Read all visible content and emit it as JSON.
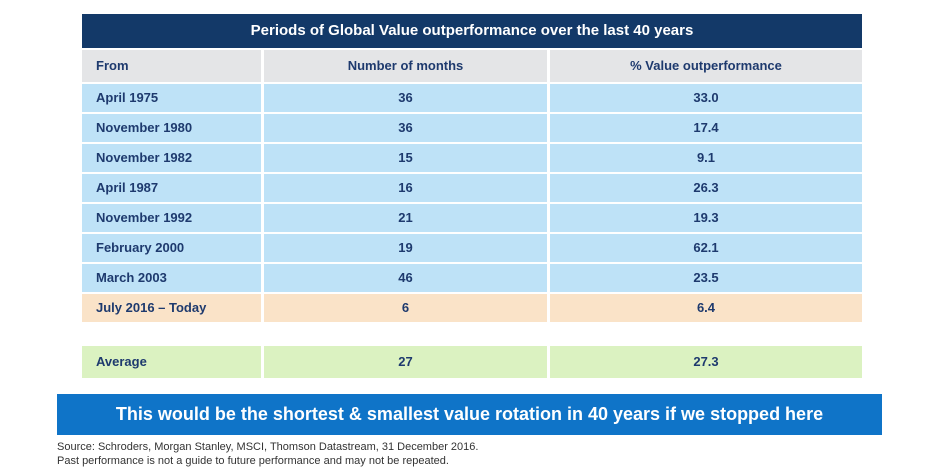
{
  "title": "Periods of Global Value outperformance over the last 40 years",
  "table": {
    "headers": [
      "From",
      "Number of months",
      "% Value outperformance"
    ],
    "rows": [
      {
        "from": "April 1975",
        "months": "36",
        "outperformance": "33.0"
      },
      {
        "from": "November 1980",
        "months": "36",
        "outperformance": "17.4"
      },
      {
        "from": "November 1982",
        "months": "15",
        "outperformance": "9.1"
      },
      {
        "from": "April 1987",
        "months": "16",
        "outperformance": "26.3"
      },
      {
        "from": "November 1992",
        "months": "21",
        "outperformance": "19.3"
      },
      {
        "from": "February 2000",
        "months": "19",
        "outperformance": "62.1"
      },
      {
        "from": "March 2003",
        "months": "46",
        "outperformance": "23.5"
      },
      {
        "from": "July 2016 – Today",
        "months": "6",
        "outperformance": "6.4"
      }
    ],
    "average": {
      "from": "Average",
      "months": "27",
      "outperformance": "27.3"
    }
  },
  "banner": {
    "text": "This would be the shortest & smallest value rotation in 40 years if we stopped here"
  },
  "footnotes": {
    "source": "Source: Schroders, Morgan Stanley, MSCI, Thomson Datastream, 31 December 2016.",
    "disclaimer": "Past performance is not a guide to future performance and may not be repeated."
  },
  "colors": {
    "title_navy": "#133968",
    "header_gray": "#E4E5E7",
    "row_blue": "#BEE2F7",
    "highlight_peach": "#FAE3C8",
    "average_green": "#DBF2C1",
    "banner_blue": "#0F74C8",
    "text_navy": "#1E3A6E"
  },
  "chart_data": {
    "type": "table",
    "title": "Periods of Global Value outperformance over the last 40 years",
    "columns": [
      "From",
      "Number of months",
      "% Value outperformance"
    ],
    "rows": [
      [
        "April 1975",
        36,
        33.0
      ],
      [
        "November 1980",
        36,
        17.4
      ],
      [
        "November 1982",
        15,
        9.1
      ],
      [
        "April 1987",
        16,
        26.3
      ],
      [
        "November 1992",
        21,
        19.3
      ],
      [
        "February 2000",
        19,
        62.1
      ],
      [
        "March 2003",
        46,
        23.5
      ],
      [
        "July 2016 – Today",
        6,
        6.4
      ]
    ],
    "average_row": [
      "Average",
      27,
      27.3
    ],
    "highlighted_row": "July 2016 – Today",
    "annotation": "This would be the shortest & smallest value rotation in 40 years if we stopped here",
    "source_note": "Source: Schroders, Morgan Stanley, MSCI, Thomson Datastream, 31 December 2016. Past performance is not a guide to future performance and may not be repeated."
  }
}
